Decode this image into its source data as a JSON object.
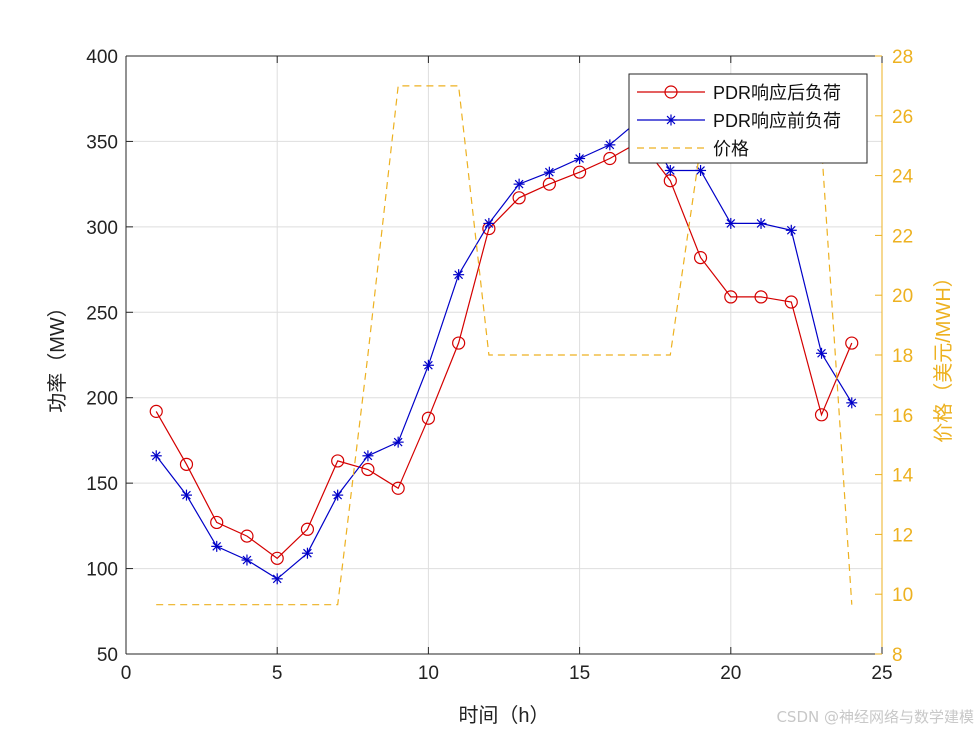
{
  "chart_data": {
    "type": "line",
    "title": "",
    "xlabel": "时间（h）",
    "ylabel_left": "功率（MW）",
    "ylabel_right": "价格（美元/MWH）",
    "xlim": [
      0,
      25
    ],
    "ylim_left": [
      50,
      400
    ],
    "ylim_right": [
      8,
      28
    ],
    "xticks": [
      "0",
      "5",
      "10",
      "15",
      "20",
      "25"
    ],
    "yticks_left": [
      "50",
      "100",
      "150",
      "200",
      "250",
      "300",
      "350",
      "400"
    ],
    "yticks_right": [
      "8",
      "10",
      "12",
      "14",
      "16",
      "18",
      "20",
      "22",
      "24",
      "26",
      "28"
    ],
    "grid": true,
    "legend_position": "top-right",
    "x": [
      1,
      2,
      3,
      4,
      5,
      6,
      7,
      8,
      9,
      10,
      11,
      12,
      13,
      14,
      15,
      16,
      17,
      18,
      19,
      20,
      21,
      22,
      23,
      24
    ],
    "series": [
      {
        "name": "PDR响应后负荷",
        "axis": "left",
        "color": "#d40000",
        "marker": "circle",
        "values": [
          192,
          161,
          127,
          119,
          106,
          123,
          163,
          158,
          147,
          188,
          232,
          299,
          317,
          325,
          332,
          340,
          350,
          327,
          282,
          259,
          259,
          256,
          190,
          232
        ]
      },
      {
        "name": "PDR响应前负荷",
        "axis": "left",
        "color": "#0000c8",
        "marker": "asterisk",
        "values": [
          166,
          143,
          113,
          105,
          94,
          109,
          143,
          166,
          174,
          219,
          272,
          302,
          325,
          332,
          340,
          348,
          363,
          333,
          333,
          302,
          302,
          298,
          226,
          197
        ]
      },
      {
        "name": "价格",
        "axis": "right",
        "color": "#edb120",
        "style": "dashed",
        "values": [
          9.65,
          9.65,
          9.65,
          9.65,
          9.65,
          9.65,
          9.65,
          18.0,
          27.0,
          27.0,
          27.0,
          18.0,
          18.0,
          18.0,
          18.0,
          18.0,
          18.0,
          18.0,
          25.0,
          25.0,
          25.0,
          25.0,
          25.0,
          9.65
        ]
      }
    ]
  },
  "watermark": "CSDN @神经网络与数学建模"
}
